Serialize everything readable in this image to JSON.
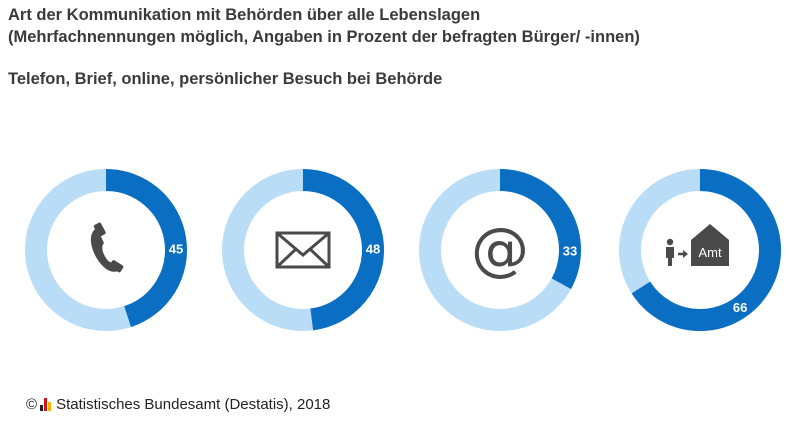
{
  "title": {
    "line1": "Art der Kommunikation mit Behörden über alle Lebenslagen",
    "line2": "(Mehrfachnennungen möglich, Angaben in Prozent der befragten Bürger/ -innen)"
  },
  "subtitle": "Telefon, Brief, online, persönlicher Besuch bei Behörde",
  "footer": {
    "copyright": "©",
    "source": "Statistisches Bundesamt (Destatis), 2018"
  },
  "colors": {
    "filled": "#0a6fc2",
    "remainder": "#b9dcf7",
    "icon": "#4a4a4a",
    "label": "#ffffff"
  },
  "chart_data": {
    "type": "pie",
    "variant": "donut",
    "title": "Art der Kommunikation mit Behörden über alle Lebenslagen",
    "subtitle": "Telefon, Brief, online, persönlicher Besuch bei Behörde",
    "unit": "Prozent",
    "series": [
      {
        "name": "Telefon",
        "value": 45,
        "label": "45",
        "icon": "telephone-icon"
      },
      {
        "name": "Brief",
        "value": 48,
        "label": "48",
        "icon": "envelope-icon"
      },
      {
        "name": "online",
        "value": 33,
        "label": "33",
        "icon": "at-sign-icon"
      },
      {
        "name": "persönlicher Besuch bei Behörde",
        "value": 66,
        "label": "66",
        "icon": "person-to-office-icon",
        "icon_text": "Amt"
      }
    ]
  }
}
